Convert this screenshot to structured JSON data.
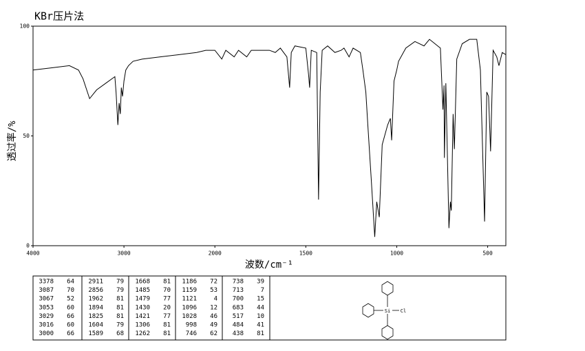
{
  "chart_data": {
    "type": "line",
    "title": "KBr压片法",
    "x_label": "波数/cm⁻¹",
    "y_label": "透过率/%",
    "x": [
      4000,
      3800,
      3600,
      3500,
      3450,
      3378,
      3300,
      3200,
      3100,
      3087,
      3067,
      3053,
      3040,
      3029,
      3016,
      3000,
      2980,
      2950,
      2900,
      2800,
      2600,
      2400,
      2200,
      2100,
      2000,
      1962,
      1940,
      1894,
      1870,
      1825,
      1800,
      1700,
      1668,
      1640,
      1604,
      1589,
      1580,
      1560,
      1500,
      1485,
      1479,
      1470,
      1440,
      1430,
      1421,
      1410,
      1380,
      1340,
      1306,
      1290,
      1262,
      1240,
      1200,
      1186,
      1170,
      1159,
      1140,
      1121,
      1110,
      1096,
      1080,
      1050,
      1035,
      1028,
      1015,
      1000,
      990,
      950,
      900,
      850,
      820,
      790,
      760,
      746,
      740,
      738,
      730,
      713,
      705,
      700,
      690,
      683,
      670,
      640,
      600,
      560,
      540,
      517,
      505,
      495,
      484,
      470,
      450,
      438,
      420,
      400
    ],
    "values": [
      80,
      81,
      82,
      80,
      76,
      67,
      71,
      74,
      77,
      70,
      55,
      65,
      60,
      72,
      68,
      75,
      80,
      82,
      84,
      85,
      86,
      87,
      88,
      89,
      89,
      85,
      89,
      86,
      89,
      86,
      89,
      89,
      88,
      90,
      86,
      72,
      88,
      91,
      90,
      78,
      72,
      89,
      88,
      21,
      70,
      89,
      91,
      88,
      89,
      90,
      86,
      90,
      88,
      80,
      70,
      55,
      30,
      4,
      20,
      13,
      46,
      55,
      58,
      48,
      75,
      80,
      84,
      90,
      93,
      91,
      94,
      92,
      90,
      62,
      73,
      40,
      74,
      8,
      20,
      16,
      60,
      44,
      85,
      92,
      94,
      94,
      80,
      11,
      70,
      68,
      43,
      89,
      86,
      82,
      88,
      87
    ],
    "color": "#000000",
    "xlim": [
      4000,
      400
    ],
    "ylim": [
      0,
      100
    ],
    "xticks": [
      4000,
      3000,
      2000,
      1500,
      1000,
      500
    ],
    "yticks": [
      0,
      50,
      100
    ],
    "x_scale_break": 2000
  },
  "peak_table": [
    [
      [
        3378,
        64
      ],
      [
        3087,
        70
      ],
      [
        3067,
        52
      ],
      [
        3053,
        60
      ],
      [
        3029,
        66
      ],
      [
        3016,
        60
      ],
      [
        3000,
        66
      ]
    ],
    [
      [
        2911,
        79
      ],
      [
        2856,
        79
      ],
      [
        1962,
        81
      ],
      [
        1894,
        81
      ],
      [
        1825,
        81
      ],
      [
        1604,
        79
      ],
      [
        1589,
        68
      ]
    ],
    [
      [
        1668,
        81
      ],
      [
        1485,
        70
      ],
      [
        1479,
        77
      ],
      [
        1430,
        20
      ],
      [
        1421,
        77
      ],
      [
        1306,
        81
      ],
      [
        1262,
        81
      ]
    ],
    [
      [
        1186,
        72
      ],
      [
        1159,
        53
      ],
      [
        1121,
        4
      ],
      [
        1096,
        12
      ],
      [
        1028,
        46
      ],
      [
        998,
        49
      ],
      [
        746,
        62
      ]
    ],
    [
      [
        738,
        39
      ],
      [
        713,
        7
      ],
      [
        700,
        15
      ],
      [
        683,
        44
      ],
      [
        517,
        10
      ],
      [
        484,
        41
      ],
      [
        438,
        81
      ]
    ]
  ],
  "structure": {
    "center_atom": "Si",
    "substituent": "Cl"
  }
}
